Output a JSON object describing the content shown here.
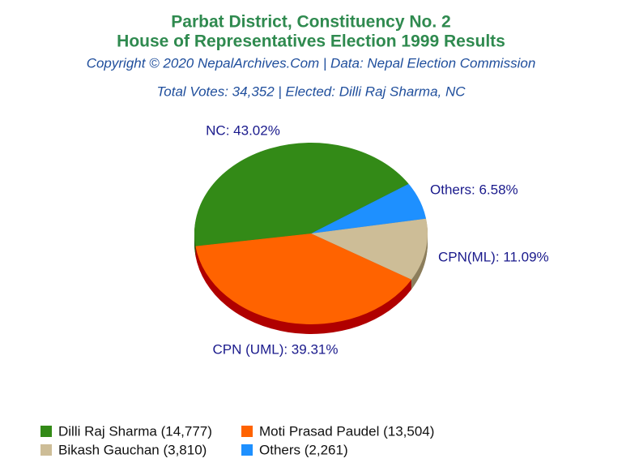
{
  "chart_data": {
    "type": "pie",
    "title": "Parbat District, Constituency No. 2",
    "subtitle": "House of Representatives Election 1999 Results",
    "source": "Copyright © 2020 NepalArchives.Com | Data: Nepal Election Commission",
    "note": "Total Votes: 34,352 | Elected: Dilli Raj Sharma, NC",
    "categories": [
      "Dilli Raj Sharma (14,777)",
      "Moti Prasad Paudel (13,504)",
      "Bikash Gauchan (3,810)",
      "Others (2,261)"
    ],
    "values": [
      43.02,
      39.31,
      11.09,
      6.58
    ],
    "value_labels": [
      "NC: 43.02%",
      "CPN (UML): 39.31%",
      "CPN(ML): 11.09%",
      "Others: 6.58%"
    ],
    "colors": [
      "#338a17",
      "#ff6300",
      "#cdbd97",
      "#1e90ff"
    ]
  }
}
